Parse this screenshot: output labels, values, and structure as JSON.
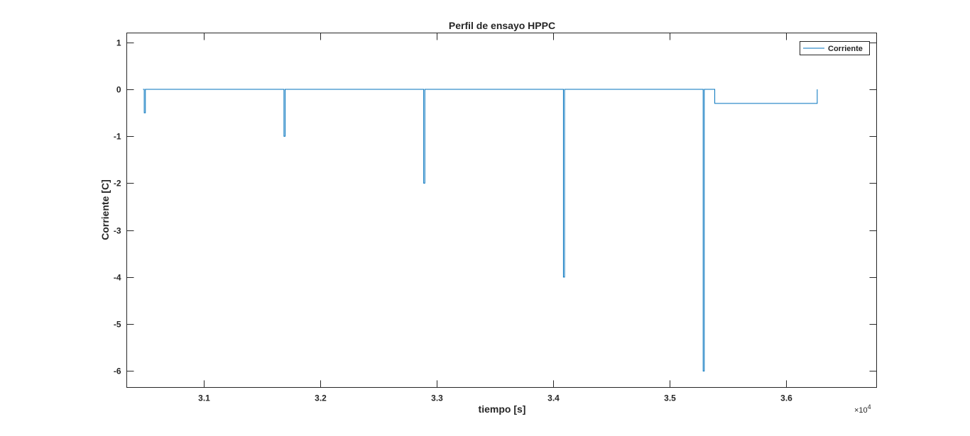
{
  "chart_data": {
    "type": "line",
    "title": "Perfil de ensayo HPPC",
    "xlabel": "tiempo [s]",
    "ylabel": "Corriente [C]",
    "x_exponent_base": "×10",
    "x_exponent_power": "4",
    "xlim": [
      30340,
      36780
    ],
    "ylim": [
      -6.35,
      1.2
    ],
    "xticks": [
      31000,
      32000,
      33000,
      34000,
      35000,
      36000
    ],
    "xtick_labels": [
      "3.1",
      "3.2",
      "3.3",
      "3.4",
      "3.5",
      "3.6"
    ],
    "yticks": [
      1,
      0,
      -1,
      -2,
      -3,
      -4,
      -5,
      -6
    ],
    "ytick_labels": [
      "1",
      "0",
      "-1",
      "-2",
      "-3",
      "-4",
      "-5",
      "-6"
    ],
    "grid": false,
    "legend_position": "top-right",
    "series_color": "#0072bd",
    "series": [
      {
        "name": "Corriente",
        "x": [
          30480,
          30480,
          30490,
          30490,
          30500,
          30500,
          31680,
          31680,
          31690,
          31690,
          31700,
          31700,
          32880,
          32880,
          32890,
          32890,
          32900,
          32900,
          34080,
          34080,
          34090,
          34090,
          34100,
          34100,
          35280,
          35280,
          35290,
          35290,
          35300,
          35300,
          35390,
          35390,
          36270,
          36270
        ],
        "y": [
          0,
          0,
          0,
          -0.5,
          -0.5,
          0,
          0,
          0,
          0,
          -1,
          -1,
          0,
          0,
          0,
          0,
          -2,
          -2,
          0,
          0,
          0,
          0,
          -4,
          -4,
          0,
          0,
          0,
          0,
          -6,
          -6,
          0,
          0,
          -0.3,
          -0.3,
          0
        ]
      }
    ]
  }
}
